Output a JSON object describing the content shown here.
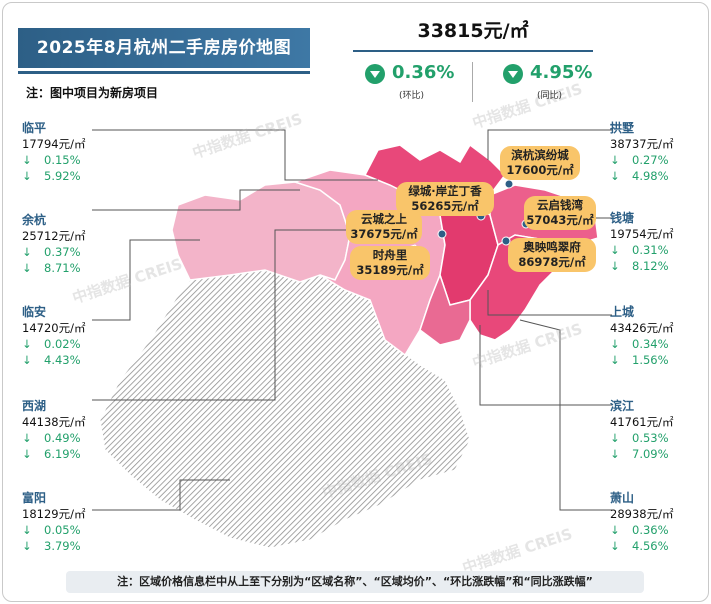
{
  "title": "2025年8月杭州二手房房价地图",
  "note_top": "注：图中项目为新房项目",
  "avg_price": "33815元/㎡",
  "mom": {
    "value": "0.36%",
    "label": "(环比)"
  },
  "yoy": {
    "value": "4.95%",
    "label": "(同比)"
  },
  "arrow_down": "↓",
  "left_districts": [
    {
      "name": "临平",
      "price": "17794元/㎡",
      "mom": "0.15%",
      "yoy": "5.92%"
    },
    {
      "name": "余杭",
      "price": "25712元/㎡",
      "mom": "0.37%",
      "yoy": "8.71%"
    },
    {
      "name": "临安",
      "price": "14720元/㎡",
      "mom": "0.02%",
      "yoy": "4.43%"
    },
    {
      "name": "西湖",
      "price": "44138元/㎡",
      "mom": "0.49%",
      "yoy": "6.19%"
    },
    {
      "name": "富阳",
      "price": "18129元/㎡",
      "mom": "0.05%",
      "yoy": "3.79%"
    }
  ],
  "right_districts": [
    {
      "name": "拱墅",
      "price": "38737元/㎡",
      "mom": "0.27%",
      "yoy": "4.98%"
    },
    {
      "name": "钱塘",
      "price": "19754元/㎡",
      "mom": "0.31%",
      "yoy": "8.12%"
    },
    {
      "name": "上城",
      "price": "43426元/㎡",
      "mom": "0.34%",
      "yoy": "1.56%"
    },
    {
      "name": "滨江",
      "price": "41761元/㎡",
      "mom": "0.53%",
      "yoy": "7.09%"
    },
    {
      "name": "萧山",
      "price": "28938元/㎡",
      "mom": "0.36%",
      "yoy": "4.56%"
    }
  ],
  "projects": [
    {
      "name": "滨杭滨纷城",
      "price": "17600元/㎡"
    },
    {
      "name": "绿城·岸芷丁香",
      "price": "56265元/㎡"
    },
    {
      "name": "云启钱湾",
      "price": "57043元/㎡"
    },
    {
      "name": "云城之上",
      "price": "37675元/㎡"
    },
    {
      "name": "时舟里",
      "price": "35189元/㎡"
    },
    {
      "name": "奥映鸣翠府",
      "price": "86978元/㎡"
    }
  ],
  "footer_note": "注：区域价格信息栏中从上至下分别为“区域名称”、“区域均价”、“环比涨跌幅”和“同比涨跌幅”",
  "watermark": "中指数据 CREIS",
  "colors": {
    "brand": "#2d5f86",
    "down": "#22a06b",
    "pill": "#f9c56a",
    "logo": "#e9344a",
    "deep": "#e8487a",
    "mid": "#f08fb0",
    "light": "#f6b8cf",
    "gray": "#9a9a9a"
  },
  "icons": {
    "down": "down-triangle-icon",
    "logo": "pagoda-logo-icon",
    "pin": "map-pin-icon"
  }
}
